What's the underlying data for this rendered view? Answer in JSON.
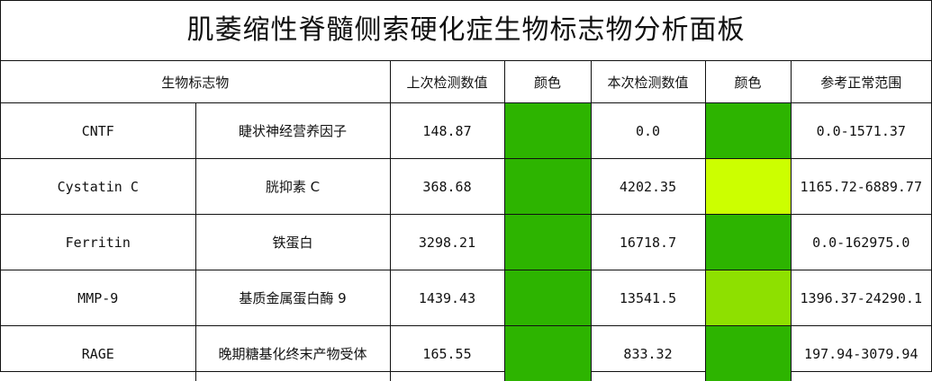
{
  "title": "肌萎缩性脊髓侧索硬化症生物标志物分析面板",
  "headers": {
    "biomarker": "生物标志物",
    "previous": "上次检测数值",
    "color1": "颜色",
    "current": "本次检测数值",
    "color2": "颜色",
    "reference": "参考正常范围"
  },
  "rows": [
    {
      "name_en": "CNTF",
      "name_cn": "睫状神经营养因子",
      "previous": "148.87",
      "prev_color": "#2db400",
      "current": "0.0",
      "curr_color": "#2db400",
      "reference": "0.0-1571.37"
    },
    {
      "name_en": "Cystatin C",
      "name_cn": "胱抑素 C",
      "previous": "368.68",
      "prev_color": "#2db400",
      "current": "4202.35",
      "curr_color": "#ccff00",
      "reference": "1165.72-6889.77"
    },
    {
      "name_en": "Ferritin",
      "name_cn": "铁蛋白",
      "previous": "3298.21",
      "prev_color": "#2db400",
      "current": "16718.7",
      "curr_color": "#2db400",
      "reference": "0.0-162975.0"
    },
    {
      "name_en": "MMP-9",
      "name_cn": "基质金属蛋白酶 9",
      "previous": "1439.43",
      "prev_color": "#2db400",
      "current": "13541.5",
      "curr_color": "#8ee000",
      "reference": "1396.37-24290.1"
    },
    {
      "name_en": "RAGE",
      "name_cn": "晚期糖基化终末产物受体",
      "previous": "165.55",
      "prev_color": "#2db400",
      "current": "833.32",
      "curr_color": "#2db400",
      "reference": "197.94-3079.94"
    }
  ]
}
